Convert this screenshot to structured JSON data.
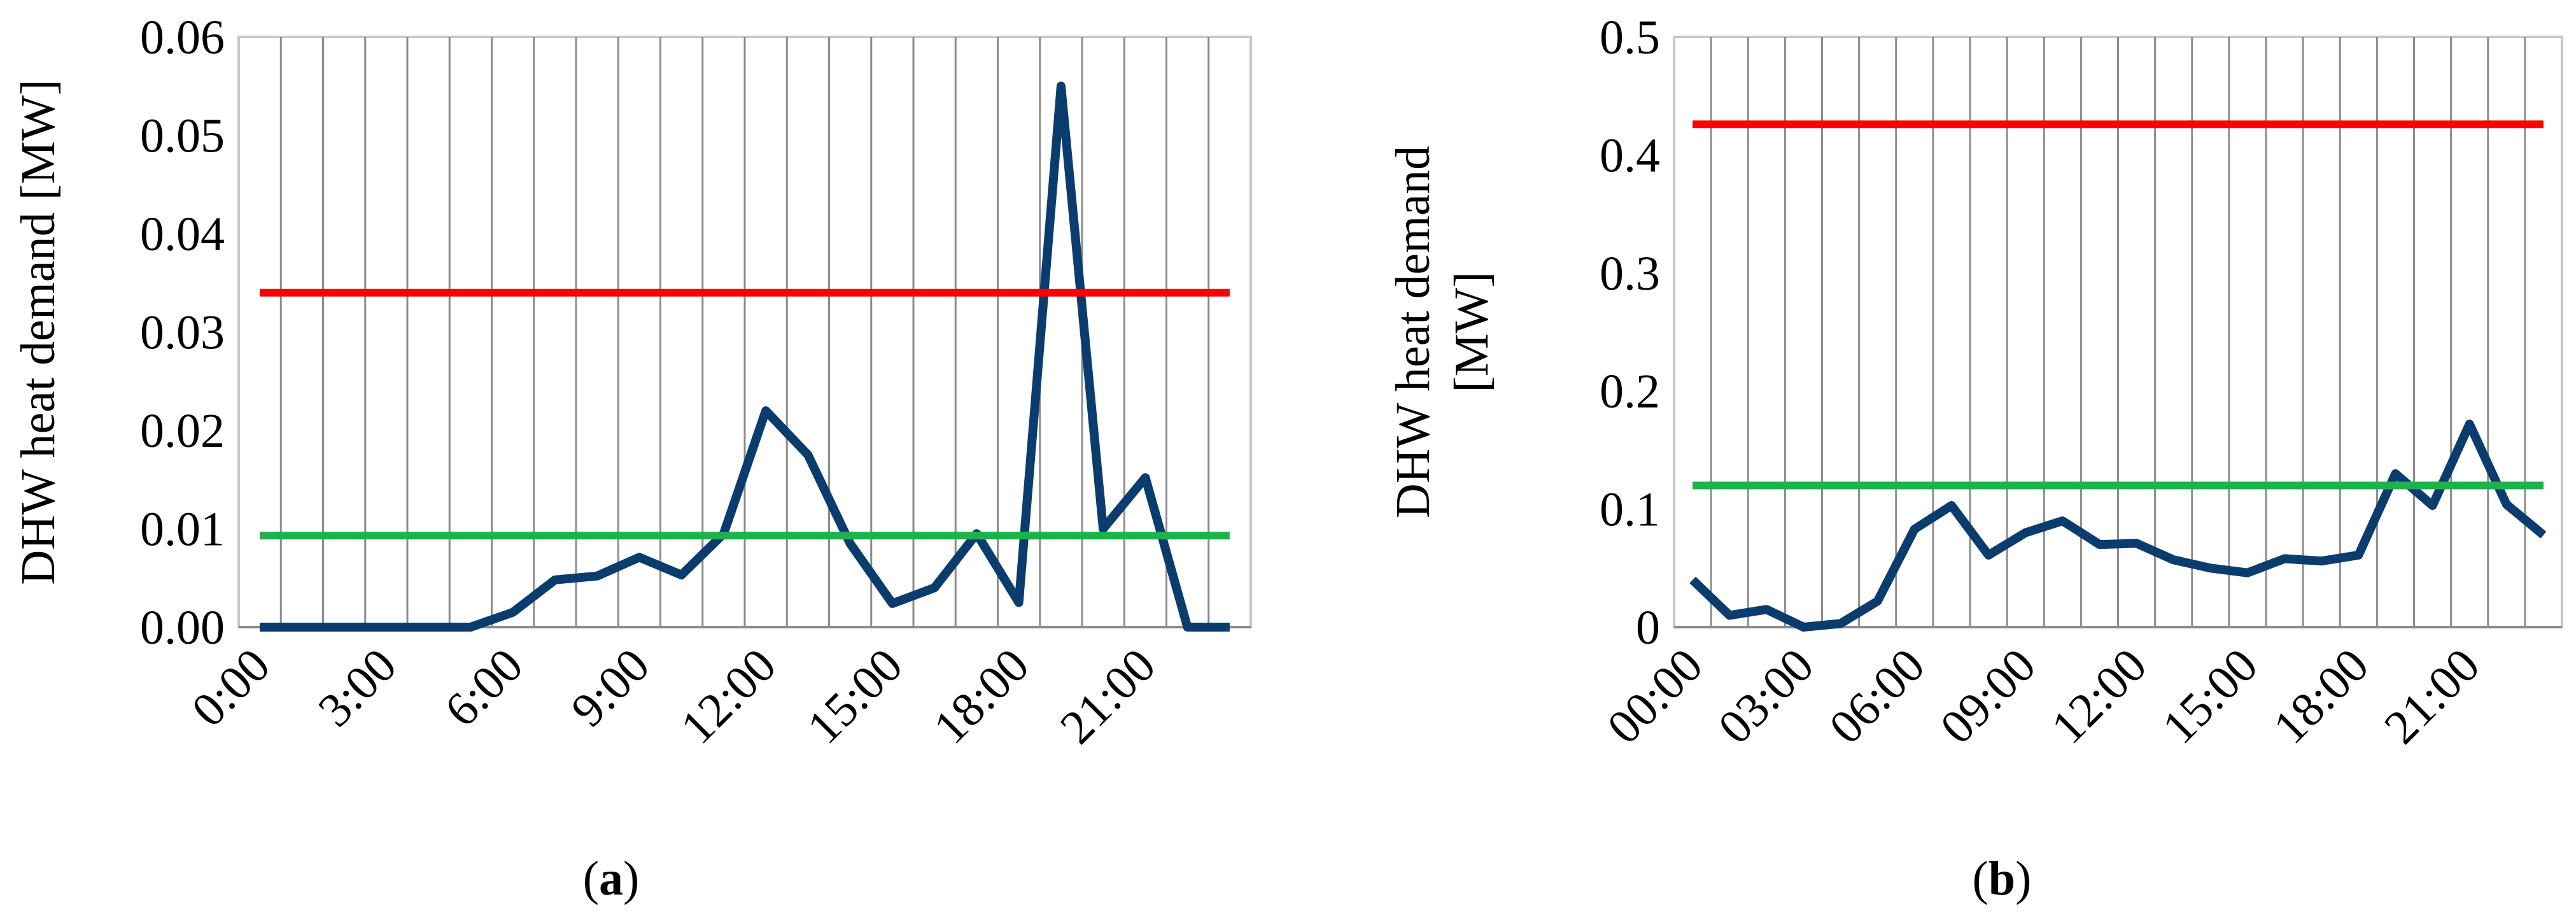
{
  "chart_data": [
    {
      "type": "line",
      "panel_label": "a",
      "ylabel": "DHW heat demand [MW]",
      "ylim": [
        0,
        0.06
      ],
      "y_ticks": [
        "0.00",
        "0.01",
        "0.02",
        "0.03",
        "0.04",
        "0.05",
        "0.06"
      ],
      "x_tick_labels": [
        "0:00",
        "3:00",
        "6:00",
        "9:00",
        "12:00",
        "15:00",
        "18:00",
        "21:00"
      ],
      "x": [
        0,
        1,
        2,
        3,
        4,
        5,
        6,
        7,
        8,
        9,
        10,
        11,
        12,
        13,
        14,
        15,
        16,
        17,
        18,
        19,
        20,
        21,
        22,
        23
      ],
      "grid": "vertical",
      "series": [
        {
          "values": [
            0,
            0,
            0,
            0,
            0,
            0,
            0.0015,
            0.0048,
            0.0052,
            0.0071,
            0.0053,
            0.0095,
            0.022,
            0.0175,
            0.0085,
            0.0024,
            0.004,
            0.0095,
            0.0025,
            0.055,
            0.01,
            0.0152,
            0,
            0
          ],
          "color": "#0b3c6e"
        },
        {
          "values": [
            0.034,
            0.034,
            0.034,
            0.034,
            0.034,
            0.034,
            0.034,
            0.034,
            0.034,
            0.034,
            0.034,
            0.034,
            0.034,
            0.034,
            0.034,
            0.034,
            0.034,
            0.034,
            0.034,
            0.034,
            0.034,
            0.034,
            0.034,
            0.034
          ],
          "color": "#ff0000"
        },
        {
          "values": [
            0.0093,
            0.0093,
            0.0093,
            0.0093,
            0.0093,
            0.0093,
            0.0093,
            0.0093,
            0.0093,
            0.0093,
            0.0093,
            0.0093,
            0.0093,
            0.0093,
            0.0093,
            0.0093,
            0.0093,
            0.0093,
            0.0093,
            0.0093,
            0.0093,
            0.0093,
            0.0093,
            0.0093
          ],
          "color": "#1db34b"
        }
      ]
    },
    {
      "type": "line",
      "panel_label": "b",
      "ylabel": "DHW heat demand [MW]",
      "ylim": [
        0,
        0.5
      ],
      "y_ticks": [
        "0",
        "0.1",
        "0.2",
        "0.3",
        "0.4",
        "0.5"
      ],
      "x_tick_labels": [
        "00:00",
        "03:00",
        "06:00",
        "09:00",
        "12:00",
        "15:00",
        "18:00",
        "21:00"
      ],
      "x": [
        0,
        1,
        2,
        3,
        4,
        5,
        6,
        7,
        8,
        9,
        10,
        11,
        12,
        13,
        14,
        15,
        16,
        17,
        18,
        19,
        20,
        21,
        22,
        23
      ],
      "grid": "vertical",
      "series": [
        {
          "values": [
            0.04,
            0.01,
            0.015,
            0.0,
            0.003,
            0.022,
            0.083,
            0.103,
            0.061,
            0.08,
            0.09,
            0.07,
            0.071,
            0.057,
            0.05,
            0.046,
            0.058,
            0.056,
            0.061,
            0.13,
            0.103,
            0.172,
            0.104,
            0.078
          ],
          "color": "#0b3c6e"
        },
        {
          "values": [
            0.426,
            0.426,
            0.426,
            0.426,
            0.426,
            0.426,
            0.426,
            0.426,
            0.426,
            0.426,
            0.426,
            0.426,
            0.426,
            0.426,
            0.426,
            0.426,
            0.426,
            0.426,
            0.426,
            0.426,
            0.426,
            0.426,
            0.426,
            0.426
          ],
          "color": "#ff0000"
        },
        {
          "values": [
            0.12,
            0.12,
            0.12,
            0.12,
            0.12,
            0.12,
            0.12,
            0.12,
            0.12,
            0.12,
            0.12,
            0.12,
            0.12,
            0.12,
            0.12,
            0.12,
            0.12,
            0.12,
            0.12,
            0.12,
            0.12,
            0.12,
            0.12,
            0.12
          ],
          "color": "#1db34b"
        }
      ]
    }
  ]
}
